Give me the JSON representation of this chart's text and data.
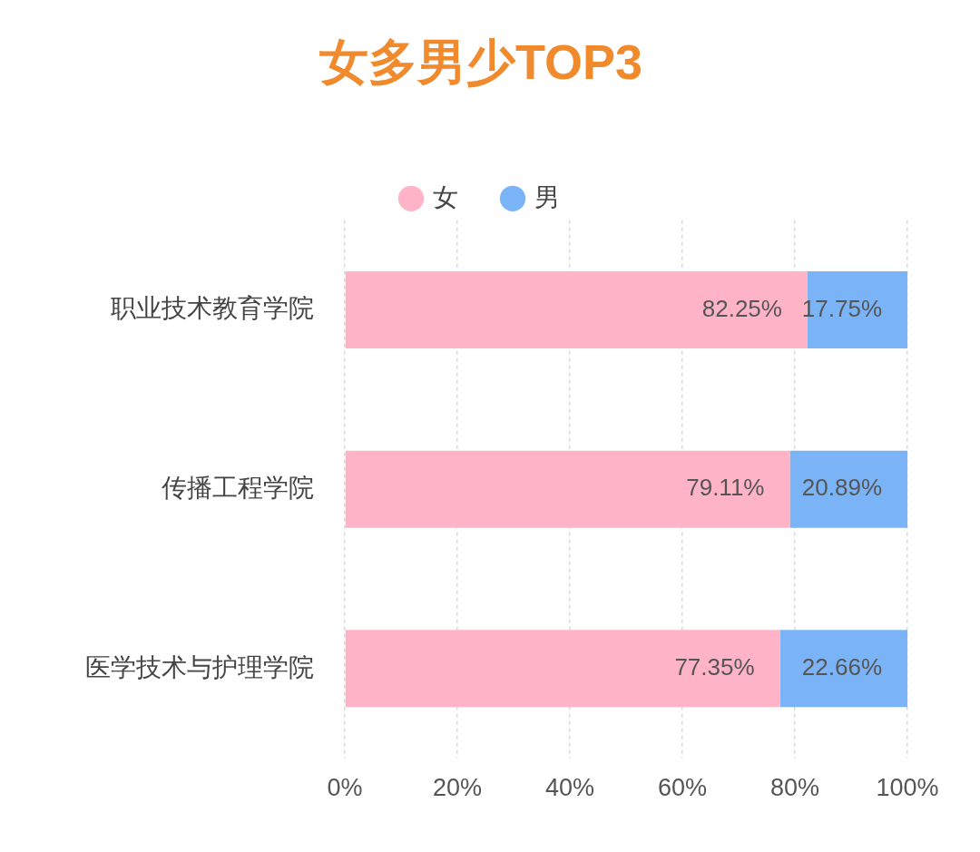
{
  "chart_data": {
    "type": "bar",
    "orientation": "horizontal",
    "stacked": true,
    "title": "女多男少TOP3",
    "categories": [
      "职业技术教育学院",
      "传播工程学院",
      "医学技术与护理学院"
    ],
    "series": [
      {
        "name": "女",
        "color": "#ffb3c6",
        "values": [
          82.25,
          79.11,
          77.35
        ]
      },
      {
        "name": "男",
        "color": "#7ab4f7",
        "values": [
          17.75,
          20.89,
          22.66
        ]
      }
    ],
    "xlim": [
      0,
      100
    ],
    "xticks": [
      {
        "value": 0,
        "label": "0%"
      },
      {
        "value": 20,
        "label": "20%"
      },
      {
        "value": 40,
        "label": "40%"
      },
      {
        "value": 60,
        "label": "60%"
      },
      {
        "value": 80,
        "label": "80%"
      },
      {
        "value": 100,
        "label": "100%"
      }
    ],
    "value_labels": [
      [
        "82.25%",
        "79.11%",
        "77.35%"
      ],
      [
        "17.75%",
        "20.89%",
        "22.66%"
      ]
    ],
    "grid": "x",
    "legend": "top"
  }
}
